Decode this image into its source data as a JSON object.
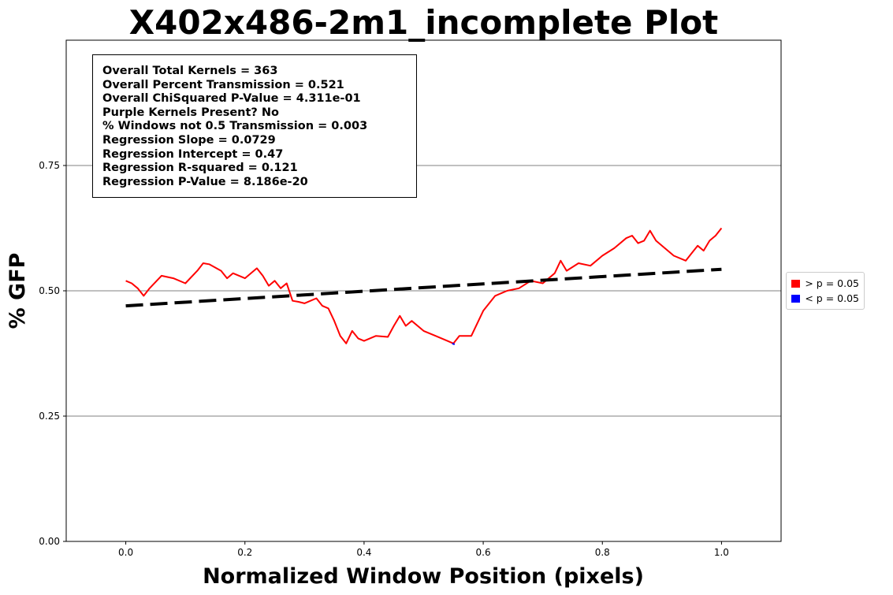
{
  "chart_data": {
    "type": "line",
    "title": "X402x486-2m1_incomplete Plot",
    "xlabel": "Normalized Window Position (pixels)",
    "ylabel": "% GFP",
    "xlim": [
      -0.1,
      1.1
    ],
    "ylim": [
      0.0,
      1.0
    ],
    "x_ticks": [
      0.0,
      0.2,
      0.4,
      0.6,
      0.8,
      1.0
    ],
    "x_tick_labels": [
      "0.0",
      "0.2",
      "0.4",
      "0.6",
      "0.8",
      "1.0"
    ],
    "y_ticks": [
      0.0,
      0.25,
      0.5,
      0.75
    ],
    "y_tick_labels": [
      "0.00",
      "0.25",
      "0.50",
      "0.75"
    ],
    "grid": "horizontal",
    "legend_placement": "outside-right",
    "legend": [
      {
        "label": "> p = 0.05",
        "color": "#ff0000"
      },
      {
        "label": "< p = 0.05",
        "color": "#0000ff"
      }
    ],
    "annotation_lines": [
      "Overall Total Kernels = 363",
      "Overall Percent Transmission = 0.521",
      "Overall ChiSquared P-Value = 4.311e-01",
      "Purple Kernels Present? No",
      "% Windows not 0.5 Transmission = 0.003",
      "Regression Slope = 0.0729",
      "Regression Intercept = 0.47",
      "Regression R-squared = 0.121",
      "Regression P-Value = 8.186e-20"
    ],
    "series": [
      {
        "color": "#ff0000",
        "x": [
          0.0,
          0.01,
          0.02,
          0.03,
          0.04,
          0.06,
          0.08,
          0.1,
          0.12,
          0.13,
          0.14,
          0.16,
          0.17,
          0.18,
          0.2,
          0.22,
          0.23,
          0.24,
          0.25,
          0.26,
          0.27,
          0.28,
          0.29,
          0.3,
          0.32,
          0.33,
          0.34,
          0.35,
          0.36,
          0.37,
          0.38,
          0.39,
          0.4,
          0.42,
          0.44,
          0.45,
          0.46,
          0.47,
          0.48,
          0.5,
          0.52,
          0.54,
          0.55,
          0.56,
          0.58,
          0.6,
          0.62,
          0.64,
          0.66,
          0.68,
          0.7,
          0.72,
          0.73,
          0.74,
          0.76,
          0.78,
          0.8,
          0.82,
          0.84,
          0.85,
          0.86,
          0.87,
          0.88,
          0.89,
          0.9,
          0.92,
          0.94,
          0.95,
          0.96,
          0.97,
          0.98,
          0.99,
          1.0
        ],
        "y": [
          0.52,
          0.515,
          0.505,
          0.49,
          0.505,
          0.53,
          0.525,
          0.515,
          0.54,
          0.555,
          0.553,
          0.54,
          0.525,
          0.535,
          0.525,
          0.545,
          0.53,
          0.51,
          0.52,
          0.505,
          0.515,
          0.48,
          0.478,
          0.475,
          0.485,
          0.47,
          0.465,
          0.44,
          0.41,
          0.395,
          0.42,
          0.405,
          0.4,
          0.41,
          0.408,
          0.43,
          0.45,
          0.43,
          0.44,
          0.42,
          0.41,
          0.4,
          0.395,
          0.41,
          0.41,
          0.46,
          0.49,
          0.5,
          0.505,
          0.52,
          0.515,
          0.535,
          0.56,
          0.54,
          0.555,
          0.55,
          0.57,
          0.585,
          0.605,
          0.61,
          0.595,
          0.6,
          0.62,
          0.6,
          0.59,
          0.57,
          0.56,
          0.575,
          0.59,
          0.58,
          0.6,
          0.61,
          0.625
        ]
      },
      {
        "color": "#0000ff",
        "x": [
          0.548,
          0.552
        ],
        "y": [
          0.395,
          0.393
        ]
      },
      {
        "color": "#000000",
        "style": "dashed",
        "x": [
          0.0,
          1.0
        ],
        "y": [
          0.47,
          0.5429
        ]
      }
    ]
  }
}
